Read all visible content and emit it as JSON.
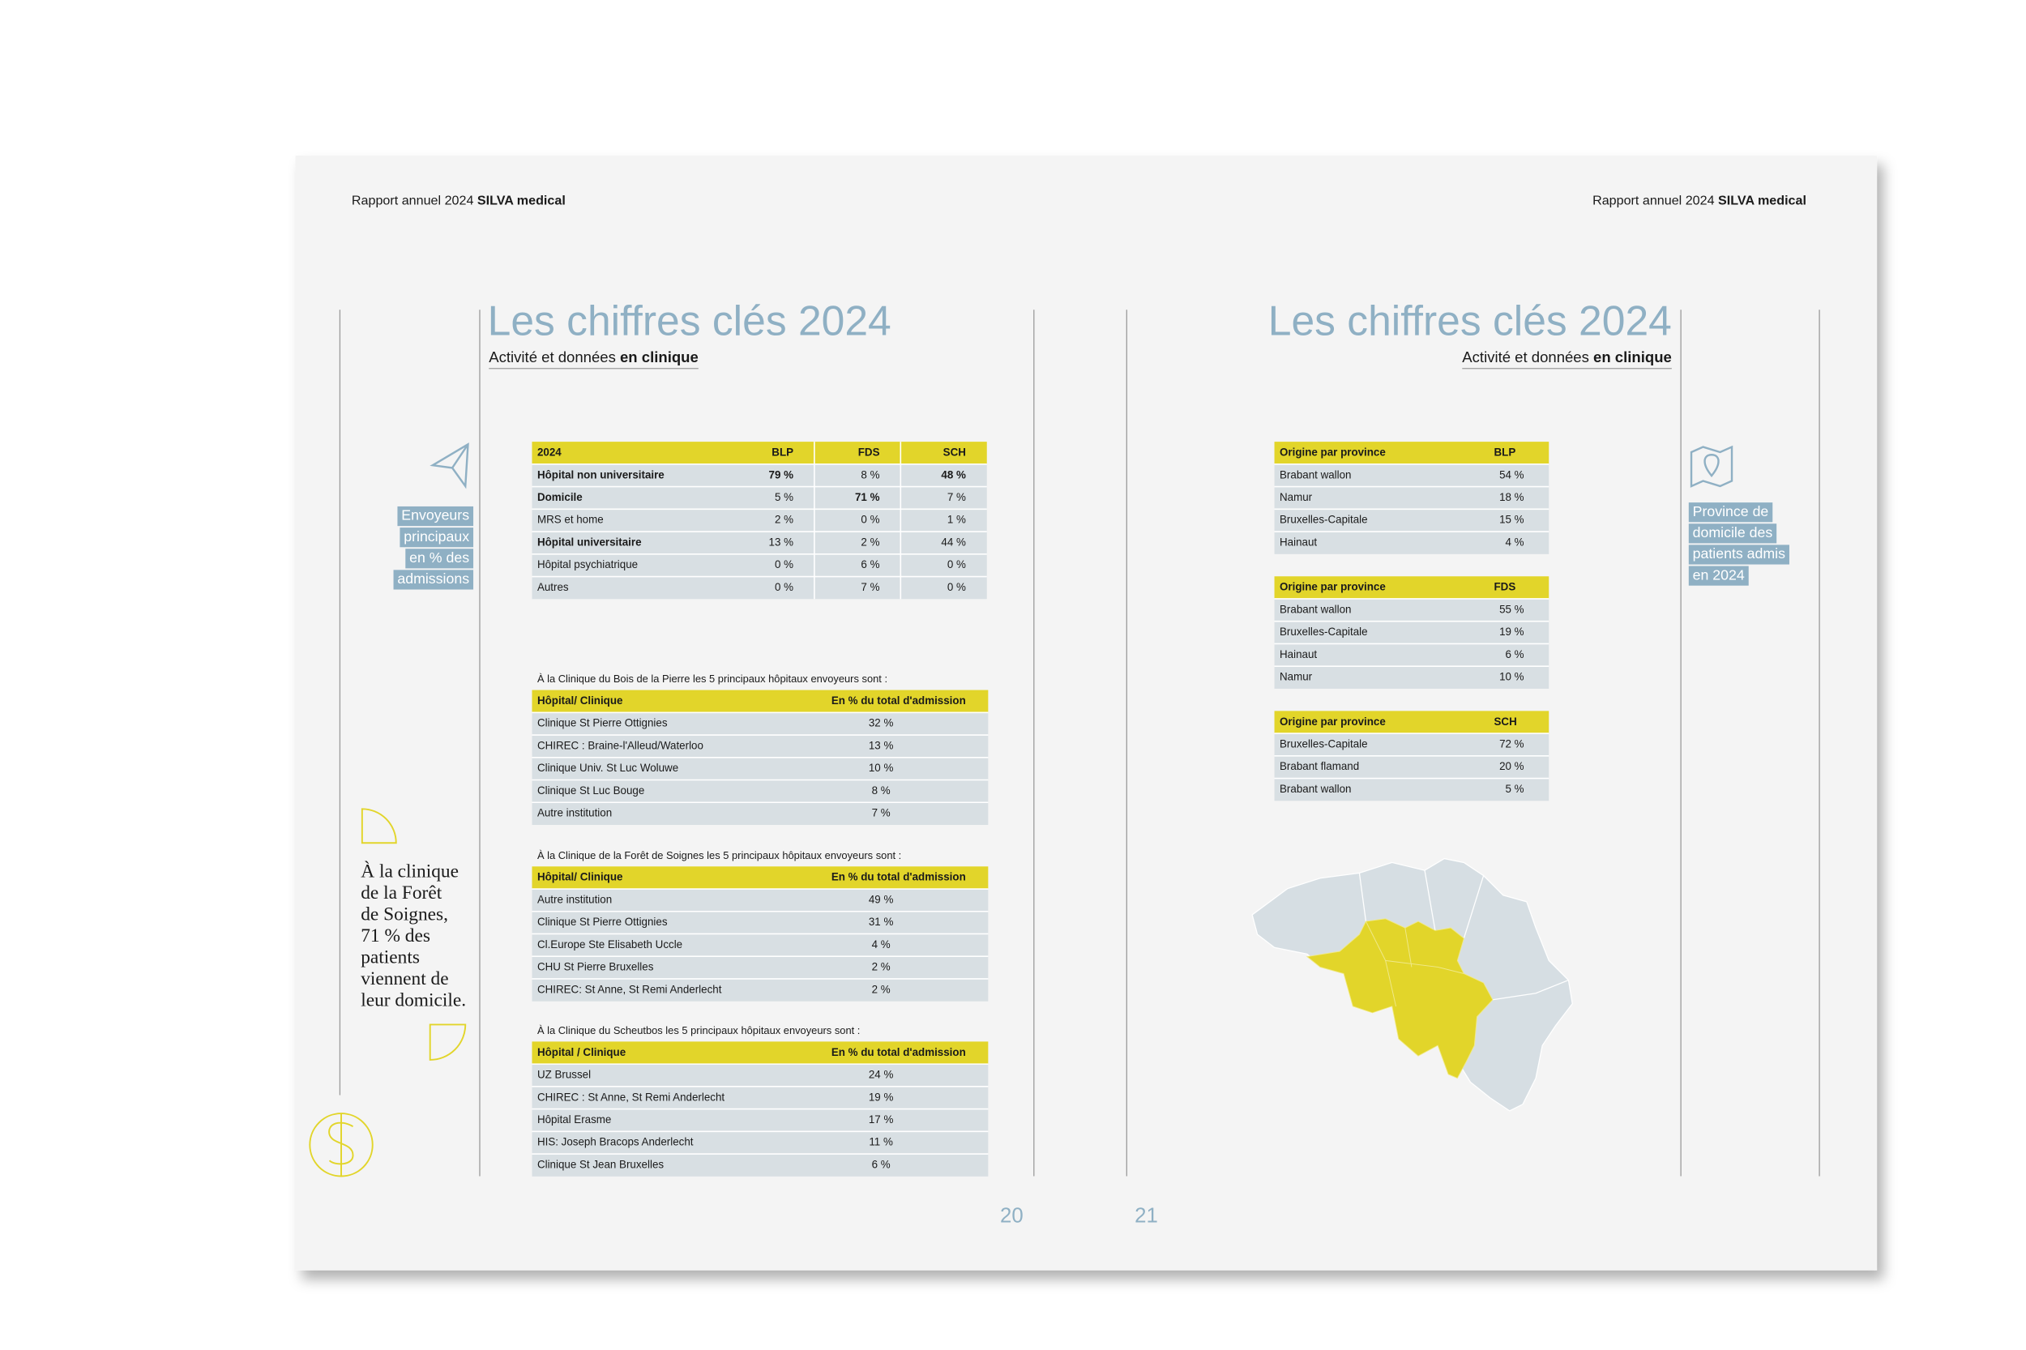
{
  "pages": [
    {
      "header_text": "Rapport annuel 2024 ",
      "header_brand": "SILVA medical",
      "title": "Les chiffres clés 2024",
      "subtitle_text": "Activité et données ",
      "subtitle_bold": "en clinique",
      "sidebar": [
        "Envoyeurs",
        "principaux",
        "en % des",
        "admissions"
      ],
      "summary_table": {
        "header": [
          "2024",
          "BLP",
          "FDS",
          "SCH"
        ],
        "rows": [
          [
            "Hôpital non universitaire",
            "79 %",
            "8 %",
            "48 %"
          ],
          [
            "Domicile",
            "5 %",
            "71 %",
            "7 %"
          ],
          [
            "MRS et home",
            "2 %",
            "0 %",
            "1 %"
          ],
          [
            "Hôpital universitaire",
            "13 %",
            "2 %",
            "44 %"
          ],
          [
            "Hôpital psychiatrique",
            "0 %",
            "6 %",
            "0 %"
          ],
          [
            "Autres",
            "0 %",
            "7 %",
            "0 %"
          ]
        ],
        "bold_cells": [
          [
            0,
            0
          ],
          [
            0,
            1
          ],
          [
            0,
            3
          ],
          [
            1,
            0
          ],
          [
            1,
            2
          ],
          [
            3,
            0
          ]
        ]
      },
      "sender_tables": [
        {
          "caption": "À la Clinique du Bois de la Pierre les 5 principaux hôpitaux envoyeurs sont :",
          "header": [
            "Hôpital/ Clinique",
            "En % du total d'admission"
          ],
          "rows": [
            [
              "Clinique St Pierre Ottignies",
              "32 %"
            ],
            [
              "CHIREC : Braine-l'Alleud/Waterloo",
              "13 %"
            ],
            [
              "Clinique Univ. St Luc Woluwe",
              "10 %"
            ],
            [
              "Clinique St Luc Bouge",
              "8 %"
            ],
            [
              "Autre institution",
              "7 %"
            ]
          ]
        },
        {
          "caption": "À la Clinique de la Forêt de Soignes les 5 principaux hôpitaux envoyeurs sont :",
          "header": [
            "Hôpital/ Clinique",
            "En % du total d'admission"
          ],
          "rows": [
            [
              "Autre institution",
              "49 %"
            ],
            [
              "Clinique St Pierre Ottignies",
              "31 %"
            ],
            [
              "Cl.Europe Ste Elisabeth Uccle",
              "4 %"
            ],
            [
              "CHU St Pierre Bruxelles",
              "2 %"
            ],
            [
              "CHIREC: St Anne, St Remi Anderlecht",
              "2 %"
            ]
          ]
        },
        {
          "caption": "À la Clinique du Scheutbos les 5 principaux hôpitaux envoyeurs sont :",
          "header": [
            "Hôpital / Clinique",
            "En % du total d'admission"
          ],
          "rows": [
            [
              "UZ Brussel",
              "24 %"
            ],
            [
              "CHIREC : St Anne, St Remi Anderlecht",
              "19 %"
            ],
            [
              "Hôpital Erasme",
              "17 %"
            ],
            [
              "HIS: Joseph Bracops Anderlecht",
              "11 %"
            ],
            [
              "Clinique St Jean Bruxelles",
              "6 %"
            ]
          ]
        }
      ],
      "quote": [
        "À la clinique",
        "de la Forêt",
        "de Soignes,",
        "71 % des",
        "patients",
        "viennent de",
        "leur domicile."
      ],
      "page_number": "20"
    },
    {
      "header_text": "Rapport annuel 2024 ",
      "header_brand": "SILVA medical",
      "title": "Les chiffres clés 2024",
      "subtitle_text": "Activité et données ",
      "subtitle_bold": "en clinique",
      "sidebar": [
        "Province de",
        "domicile des",
        "patients admis",
        "en 2024"
      ],
      "province_tables": [
        {
          "header": [
            "Origine par province",
            "BLP"
          ],
          "rows": [
            [
              "Brabant wallon",
              "54 %"
            ],
            [
              "Namur",
              "18 %"
            ],
            [
              "Bruxelles-Capitale",
              "15 %"
            ],
            [
              "Hainaut",
              "4 %"
            ]
          ]
        },
        {
          "header": [
            "Origine par province",
            "FDS"
          ],
          "rows": [
            [
              "Brabant wallon",
              "55 %"
            ],
            [
              "Bruxelles-Capitale",
              "19 %"
            ],
            [
              "Hainaut",
              "6 %"
            ],
            [
              "Namur",
              "10 %"
            ]
          ]
        },
        {
          "header": [
            "Origine par province",
            "SCH"
          ],
          "rows": [
            [
              "Bruxelles-Capitale",
              "72 %"
            ],
            [
              "Brabant flamand",
              "20 %"
            ],
            [
              "Brabant wallon",
              "5 %"
            ]
          ]
        }
      ],
      "page_number": "21"
    }
  ]
}
